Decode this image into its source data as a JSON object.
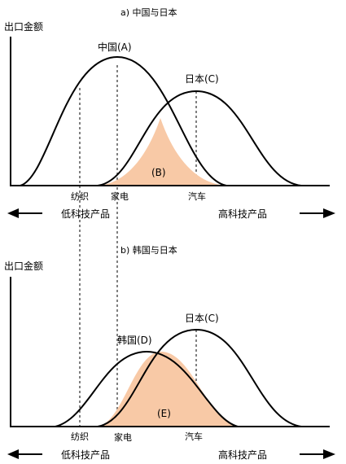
{
  "panel_a": {
    "title": "a) 中国与日本",
    "y_axis_label": "出口金额",
    "curve_left_label": "中国(A)",
    "curve_right_label": "日本(C)",
    "overlap_label": "(B)",
    "tick_labels": [
      "纺织",
      "家电",
      "汽车"
    ],
    "left_arrow_label": "低科技产品",
    "right_arrow_label": "高科技产品"
  },
  "panel_b": {
    "title": "b) 韩国与日本",
    "y_axis_label": "出口金额",
    "curve_left_label": "韩国(D)",
    "curve_right_label": "日本(C)",
    "overlap_label": "(E)",
    "tick_labels": [
      "纺织",
      "家电",
      "汽车"
    ],
    "left_arrow_label": "低科技产品",
    "right_arrow_label": "高科技产品"
  },
  "colors": {
    "overlap_fill": "#f8c9a6",
    "line": "#000000"
  }
}
